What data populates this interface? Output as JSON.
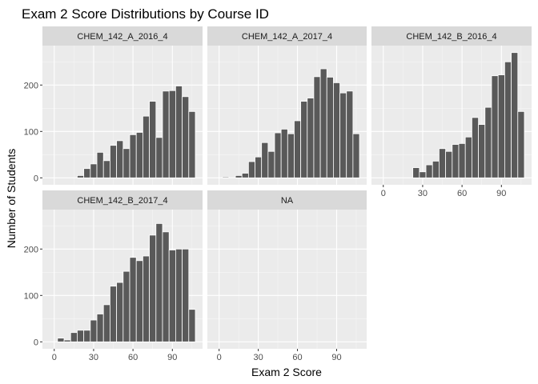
{
  "chart_data": {
    "type": "bar",
    "title": "Exam 2 Score Distributions by Course ID",
    "xlabel": "Exam 2 Score",
    "ylabel": "Number of Students",
    "xlim": [
      -9,
      113
    ],
    "ylim": [
      -15,
      285
    ],
    "xticks": [
      0,
      30,
      60,
      90
    ],
    "yticks": [
      0,
      100,
      200
    ],
    "bin_width": 5,
    "grid": true,
    "legend": "none",
    "panels": [
      {
        "label": "CHEM_142_A_2016_4",
        "bins": [
          {
            "x": 20,
            "count": 5
          },
          {
            "x": 25,
            "count": 20
          },
          {
            "x": 30,
            "count": 30
          },
          {
            "x": 35,
            "count": 55
          },
          {
            "x": 40,
            "count": 37
          },
          {
            "x": 45,
            "count": 70
          },
          {
            "x": 50,
            "count": 80
          },
          {
            "x": 55,
            "count": 63
          },
          {
            "x": 60,
            "count": 93
          },
          {
            "x": 65,
            "count": 98
          },
          {
            "x": 70,
            "count": 133
          },
          {
            "x": 75,
            "count": 165
          },
          {
            "x": 80,
            "count": 87
          },
          {
            "x": 85,
            "count": 187
          },
          {
            "x": 90,
            "count": 188
          },
          {
            "x": 95,
            "count": 198
          },
          {
            "x": 100,
            "count": 175
          },
          {
            "x": 105,
            "count": 143
          }
        ]
      },
      {
        "label": "CHEM_142_A_2017_4",
        "bins": [
          {
            "x": 5,
            "count": 2
          },
          {
            "x": 15,
            "count": 5
          },
          {
            "x": 20,
            "count": 10
          },
          {
            "x": 25,
            "count": 35
          },
          {
            "x": 30,
            "count": 45
          },
          {
            "x": 35,
            "count": 76
          },
          {
            "x": 40,
            "count": 57
          },
          {
            "x": 45,
            "count": 97
          },
          {
            "x": 50,
            "count": 105
          },
          {
            "x": 55,
            "count": 95
          },
          {
            "x": 60,
            "count": 123
          },
          {
            "x": 65,
            "count": 165
          },
          {
            "x": 70,
            "count": 172
          },
          {
            "x": 75,
            "count": 218
          },
          {
            "x": 80,
            "count": 235
          },
          {
            "x": 85,
            "count": 217
          },
          {
            "x": 90,
            "count": 205
          },
          {
            "x": 95,
            "count": 183
          },
          {
            "x": 100,
            "count": 187
          },
          {
            "x": 105,
            "count": 95
          }
        ]
      },
      {
        "label": "CHEM_142_B_2016_4",
        "bins": [
          {
            "x": 25,
            "count": 22
          },
          {
            "x": 30,
            "count": 13
          },
          {
            "x": 35,
            "count": 28
          },
          {
            "x": 40,
            "count": 36
          },
          {
            "x": 45,
            "count": 63
          },
          {
            "x": 50,
            "count": 57
          },
          {
            "x": 55,
            "count": 72
          },
          {
            "x": 60,
            "count": 74
          },
          {
            "x": 65,
            "count": 88
          },
          {
            "x": 70,
            "count": 130
          },
          {
            "x": 75,
            "count": 115
          },
          {
            "x": 80,
            "count": 152
          },
          {
            "x": 85,
            "count": 220
          },
          {
            "x": 90,
            "count": 222
          },
          {
            "x": 95,
            "count": 250
          },
          {
            "x": 100,
            "count": 270
          },
          {
            "x": 105,
            "count": 143
          }
        ]
      },
      {
        "label": "CHEM_142_B_2017_4",
        "bins": [
          {
            "x": 5,
            "count": 8
          },
          {
            "x": 10,
            "count": 4
          },
          {
            "x": 15,
            "count": 20
          },
          {
            "x": 20,
            "count": 25
          },
          {
            "x": 25,
            "count": 25
          },
          {
            "x": 30,
            "count": 47
          },
          {
            "x": 35,
            "count": 60
          },
          {
            "x": 40,
            "count": 80
          },
          {
            "x": 45,
            "count": 120
          },
          {
            "x": 50,
            "count": 128
          },
          {
            "x": 55,
            "count": 152
          },
          {
            "x": 60,
            "count": 182
          },
          {
            "x": 65,
            "count": 175
          },
          {
            "x": 70,
            "count": 185
          },
          {
            "x": 75,
            "count": 230
          },
          {
            "x": 80,
            "count": 255
          },
          {
            "x": 85,
            "count": 237
          },
          {
            "x": 90,
            "count": 198
          },
          {
            "x": 95,
            "count": 200
          },
          {
            "x": 100,
            "count": 200
          },
          {
            "x": 105,
            "count": 70
          }
        ]
      },
      {
        "label": "NA",
        "bins": []
      }
    ]
  }
}
